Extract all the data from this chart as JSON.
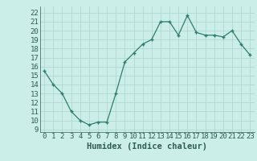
{
  "x": [
    0,
    1,
    2,
    3,
    4,
    5,
    6,
    7,
    8,
    9,
    10,
    11,
    12,
    13,
    14,
    15,
    16,
    17,
    18,
    19,
    20,
    21,
    22,
    23
  ],
  "y": [
    15.5,
    14.0,
    13.0,
    11.0,
    10.0,
    9.5,
    9.8,
    9.8,
    13.0,
    16.5,
    17.5,
    18.5,
    19.0,
    21.0,
    21.0,
    19.5,
    21.7,
    19.8,
    19.5,
    19.5,
    19.3,
    20.0,
    18.5,
    17.3
  ],
  "line_color": "#2e7d6e",
  "marker": "+",
  "bg_color": "#cceee8",
  "grid_color": "#aad4ce",
  "xlabel": "Humidex (Indice chaleur)",
  "ylabel_ticks": [
    9,
    10,
    11,
    12,
    13,
    14,
    15,
    16,
    17,
    18,
    19,
    20,
    21,
    22
  ],
  "ylim": [
    8.7,
    22.7
  ],
  "xlim": [
    -0.5,
    23.5
  ],
  "xticks": [
    0,
    1,
    2,
    3,
    4,
    5,
    6,
    7,
    8,
    9,
    10,
    11,
    12,
    13,
    14,
    15,
    16,
    17,
    18,
    19,
    20,
    21,
    22,
    23
  ],
  "title_color": "#2e5c55",
  "font_size": 6.5,
  "xlabel_fontsize": 7.5
}
